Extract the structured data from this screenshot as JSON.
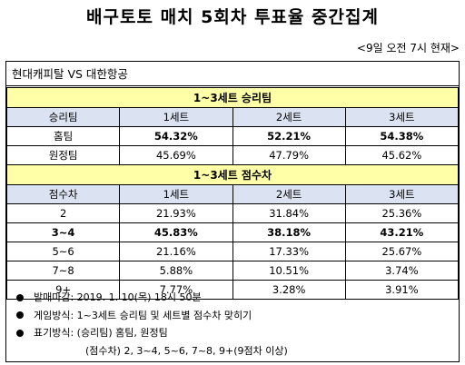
{
  "title": "배구토토 매치 5회차 투표율 중간집계",
  "subtitle": "<9일 오전 7시 현재>",
  "match": "현대캐피탈 VS 대한항공",
  "section1": {
    "title": "1~3세트 승리팀",
    "header": [
      "승리팀",
      "1세트",
      "2세트",
      "3세트"
    ],
    "rows": [
      {
        "label": "홈팀",
        "values": [
          "54.32%",
          "52.21%",
          "54.38%"
        ]
      },
      {
        "label": "원정팀",
        "values": [
          "45.69%",
          "47.79%",
          "45.62%"
        ]
      }
    ]
  },
  "section2": {
    "title": "1~3세트 점수차",
    "header": [
      "점수차",
      "1세트",
      "2세트",
      "3세트"
    ],
    "rows": [
      {
        "label": "2",
        "values": [
          "21.93%",
          "31.84%",
          "25.36%"
        ]
      },
      {
        "label": "3~4",
        "values": [
          "45.83%",
          "38.18%",
          "43.21%"
        ]
      },
      {
        "label": "5~6",
        "values": [
          "21.16%",
          "17.33%",
          "25.67%"
        ]
      },
      {
        "label": "7~8",
        "values": [
          "5.88%",
          "10.51%",
          "3.74%"
        ]
      },
      {
        "label": "9+",
        "values": [
          "7.77%",
          "3.28%",
          "3.91%"
        ]
      }
    ]
  },
  "notes": [
    "발매마감: 2019. 1. 10(목) 18시 50분",
    "게임방식: 1~3세트 승리팀 및 세트별 점수차 맞히기",
    "표기방식: (승리팀) 홈팀, 원정팀",
    "(점수차) 2, 3~4, 5~6, 7~8, 9+(9점차 이상)"
  ]
}
